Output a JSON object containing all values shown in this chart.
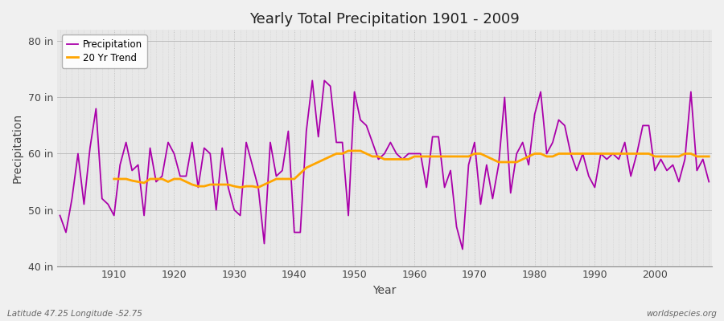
{
  "title": "Yearly Total Precipitation 1901 - 2009",
  "xlabel": "Year",
  "ylabel": "Precipitation",
  "fig_bg_color": "#f0f0f0",
  "plot_bg_color": "#e8e8e8",
  "precip_color": "#aa00aa",
  "trend_color": "#ffa500",
  "precip_label": "Precipitation",
  "trend_label": "20 Yr Trend",
  "ylim": [
    40,
    82
  ],
  "yticks": [
    40,
    50,
    60,
    70,
    80
  ],
  "ytick_labels": [
    "40 in",
    "50 in",
    "60 in",
    "70 in",
    "80 in"
  ],
  "xlim_start": 1901,
  "xlim_end": 2009,
  "xticks": [
    1910,
    1920,
    1930,
    1940,
    1950,
    1960,
    1970,
    1980,
    1990,
    2000
  ],
  "footer_left": "Latitude 47.25 Longitude -52.75",
  "footer_right": "worldspecies.org",
  "years": [
    1901,
    1902,
    1903,
    1904,
    1905,
    1906,
    1907,
    1908,
    1909,
    1910,
    1911,
    1912,
    1913,
    1914,
    1915,
    1916,
    1917,
    1918,
    1919,
    1920,
    1921,
    1922,
    1923,
    1924,
    1925,
    1926,
    1927,
    1928,
    1929,
    1930,
    1931,
    1932,
    1933,
    1934,
    1935,
    1936,
    1937,
    1938,
    1939,
    1940,
    1941,
    1942,
    1943,
    1944,
    1945,
    1946,
    1947,
    1948,
    1949,
    1950,
    1951,
    1952,
    1953,
    1954,
    1955,
    1956,
    1957,
    1958,
    1959,
    1960,
    1961,
    1962,
    1963,
    1964,
    1965,
    1966,
    1967,
    1968,
    1969,
    1970,
    1971,
    1972,
    1973,
    1974,
    1975,
    1976,
    1977,
    1978,
    1979,
    1980,
    1981,
    1982,
    1983,
    1984,
    1985,
    1986,
    1987,
    1988,
    1989,
    1990,
    1991,
    1992,
    1993,
    1994,
    1995,
    1996,
    1997,
    1998,
    1999,
    2000,
    2001,
    2002,
    2003,
    2004,
    2005,
    2006,
    2007,
    2008,
    2009
  ],
  "precip": [
    49,
    46,
    52,
    60,
    51,
    61,
    68,
    52,
    51,
    49,
    58,
    62,
    57,
    58,
    49,
    61,
    55,
    56,
    62,
    60,
    56,
    56,
    62,
    54,
    61,
    60,
    50,
    61,
    54,
    50,
    49,
    62,
    58,
    54,
    44,
    62,
    56,
    57,
    64,
    46,
    46,
    64,
    73,
    63,
    73,
    72,
    62,
    62,
    49,
    71,
    66,
    65,
    62,
    59,
    60,
    62,
    60,
    59,
    60,
    60,
    60,
    54,
    63,
    63,
    54,
    57,
    47,
    43,
    58,
    62,
    51,
    58,
    52,
    58,
    70,
    53,
    60,
    62,
    58,
    67,
    71,
    60,
    62,
    66,
    65,
    60,
    57,
    60,
    56,
    54,
    60,
    59,
    60,
    59,
    62,
    56,
    60,
    65,
    65,
    57,
    59,
    57,
    58,
    55,
    59,
    71,
    57,
    59,
    55
  ],
  "trend_years": [
    1910,
    1911,
    1912,
    1913,
    1914,
    1915,
    1916,
    1917,
    1918,
    1919,
    1920,
    1921,
    1922,
    1923,
    1924,
    1925,
    1926,
    1927,
    1928,
    1929,
    1930,
    1931,
    1932,
    1933,
    1934,
    1935,
    1936,
    1937,
    1938,
    1939,
    1940,
    1941,
    1942,
    1943,
    1944,
    1945,
    1946,
    1947,
    1948,
    1949,
    1950,
    1951,
    1952,
    1953,
    1954,
    1955,
    1956,
    1957,
    1958,
    1959,
    1960,
    1961,
    1962,
    1963,
    1964,
    1965,
    1966,
    1967,
    1968,
    1969,
    1970,
    1971,
    1972,
    1973,
    1974,
    1975,
    1976,
    1977,
    1978,
    1979,
    1980,
    1981,
    1982,
    1983,
    1984,
    1985,
    1986,
    1987,
    1988,
    1989,
    1990,
    1991,
    1992,
    1993,
    1994,
    1995,
    1996,
    1997,
    1998,
    1999,
    2000,
    2001,
    2002,
    2003,
    2004,
    2005,
    2006,
    2007,
    2008,
    2009
  ],
  "trend": [
    55.5,
    55.5,
    55.5,
    55.2,
    55.0,
    54.8,
    55.5,
    55.5,
    55.5,
    55.0,
    55.5,
    55.5,
    55.0,
    54.5,
    54.2,
    54.2,
    54.5,
    54.5,
    54.5,
    54.5,
    54.2,
    54.0,
    54.2,
    54.2,
    54.0,
    54.5,
    55.0,
    55.5,
    55.5,
    55.5,
    55.5,
    56.5,
    57.5,
    58.0,
    58.5,
    59.0,
    59.5,
    60.0,
    60.0,
    60.5,
    60.5,
    60.5,
    60.0,
    59.5,
    59.5,
    59.0,
    59.0,
    59.0,
    59.0,
    59.0,
    59.5,
    59.5,
    59.5,
    59.5,
    59.5,
    59.5,
    59.5,
    59.5,
    59.5,
    59.5,
    60.0,
    60.0,
    59.5,
    59.0,
    58.5,
    58.5,
    58.5,
    58.5,
    59.0,
    59.5,
    60.0,
    60.0,
    59.5,
    59.5,
    60.0,
    60.0,
    60.0,
    60.0,
    60.0,
    60.0,
    60.0,
    60.0,
    60.0,
    60.0,
    60.0,
    60.0,
    60.0,
    60.0,
    60.0,
    60.0,
    59.5,
    59.5,
    59.5,
    59.5,
    59.5,
    60.0,
    60.0,
    59.5,
    59.5,
    59.5
  ]
}
